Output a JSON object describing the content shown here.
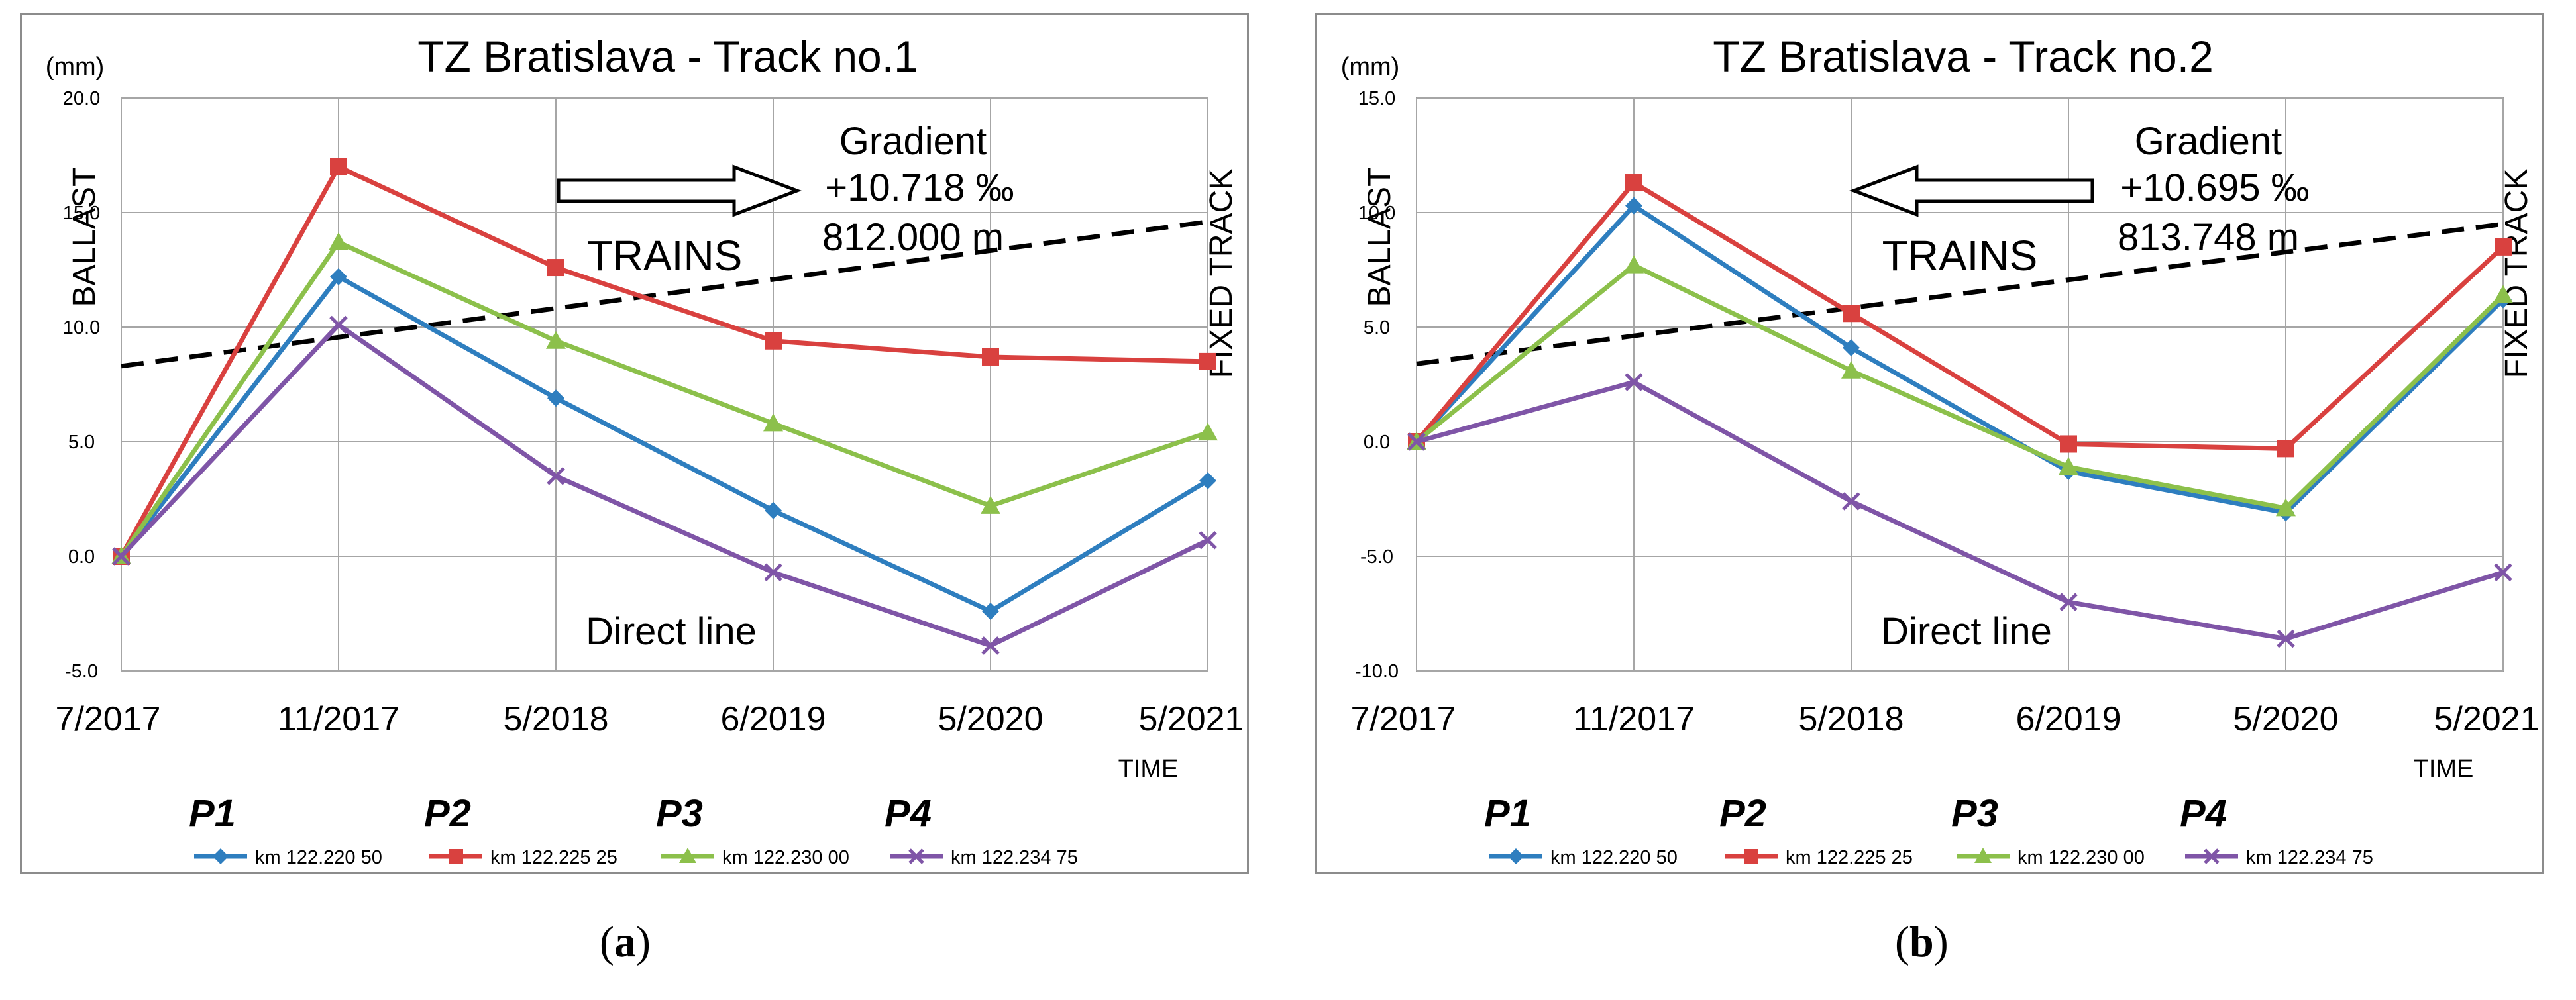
{
  "panels": [
    {
      "caption_letter": "a",
      "chart_data": {
        "type": "line",
        "title": "TZ Bratislava - Track no.1",
        "ylabel": "(mm)",
        "xlabel": "TIME",
        "categories": [
          "7/2017",
          "11/2017",
          "5/2018",
          "6/2019",
          "5/2020",
          "5/2021"
        ],
        "ylim": [
          -5.0,
          20.0
        ],
        "yticks": [
          "20.0",
          "15.0",
          "10.0",
          "5.0",
          "0.0",
          "-5.0"
        ],
        "ytick_values": [
          20,
          15,
          10,
          5,
          0,
          -5
        ],
        "series": [
          {
            "name": "P1",
            "label": "km 122.220 50",
            "color": "#2e7ebf",
            "marker": "diamond",
            "values": [
              0.0,
              12.2,
              6.9,
              2.0,
              -2.4,
              3.3
            ]
          },
          {
            "name": "P2",
            "label": "km 122.225 25",
            "color": "#d9413f",
            "marker": "square",
            "values": [
              0.0,
              17.0,
              12.6,
              9.4,
              8.7,
              8.5
            ]
          },
          {
            "name": "P3",
            "label": "km 122.230 00",
            "color": "#8cc04b",
            "marker": "triangle",
            "values": [
              0.0,
              13.7,
              9.4,
              5.8,
              2.2,
              5.4
            ]
          },
          {
            "name": "P4",
            "label": "km 122.234 75",
            "color": "#7f55a7",
            "marker": "x",
            "values": [
              0.0,
              10.1,
              3.5,
              -0.7,
              -3.9,
              0.7
            ]
          }
        ],
        "gradient_line": {
          "values_at_ends": [
            8.3,
            14.6
          ]
        },
        "annotations": {
          "gradient": "Gradient",
          "gradient_value": "+10.718 ‰",
          "length": "812.000 m",
          "trains": "TRAINS",
          "direct_line": "Direct line",
          "left_side": "BALLAST",
          "right_side": "FIXED TRACK",
          "arrow_direction": "right"
        }
      }
    },
    {
      "caption_letter": "b",
      "chart_data": {
        "type": "line",
        "title": "TZ Bratislava - Track no.2",
        "ylabel": "(mm)",
        "xlabel": "TIME",
        "categories": [
          "7/2017",
          "11/2017",
          "5/2018",
          "6/2019",
          "5/2020",
          "5/2021"
        ],
        "ylim": [
          -10.0,
          15.0
        ],
        "yticks": [
          "15.0",
          "10.0",
          "5.0",
          "0.0",
          "-5.0",
          "-10.0"
        ],
        "ytick_values": [
          15,
          10,
          5,
          0,
          -5,
          -10
        ],
        "series": [
          {
            "name": "P1",
            "label": "km 122.220 50",
            "color": "#2e7ebf",
            "marker": "diamond",
            "values": [
              0.0,
              10.3,
              4.1,
              -1.3,
              -3.1,
              6.2
            ]
          },
          {
            "name": "P2",
            "label": "km 122.225 25",
            "color": "#d9413f",
            "marker": "square",
            "values": [
              0.0,
              11.3,
              5.6,
              -0.1,
              -0.3,
              8.5
            ]
          },
          {
            "name": "P3",
            "label": "km 122.230 00",
            "color": "#8cc04b",
            "marker": "triangle",
            "values": [
              0.0,
              7.7,
              3.1,
              -1.1,
              -2.9,
              6.4
            ]
          },
          {
            "name": "P4",
            "label": "km 122.234 75",
            "color": "#7f55a7",
            "marker": "x",
            "values": [
              0.0,
              2.6,
              -2.6,
              -7.0,
              -8.6,
              -5.7
            ]
          }
        ],
        "gradient_line": {
          "values_at_ends": [
            3.4,
            9.5
          ]
        },
        "annotations": {
          "gradient": "Gradient",
          "gradient_value": "+10.695 ‰",
          "length": "813.748 m",
          "trains": "TRAINS",
          "direct_line": "Direct line",
          "left_side": "BALLAST",
          "right_side": "FIXED TRACK",
          "arrow_direction": "left"
        }
      }
    }
  ]
}
